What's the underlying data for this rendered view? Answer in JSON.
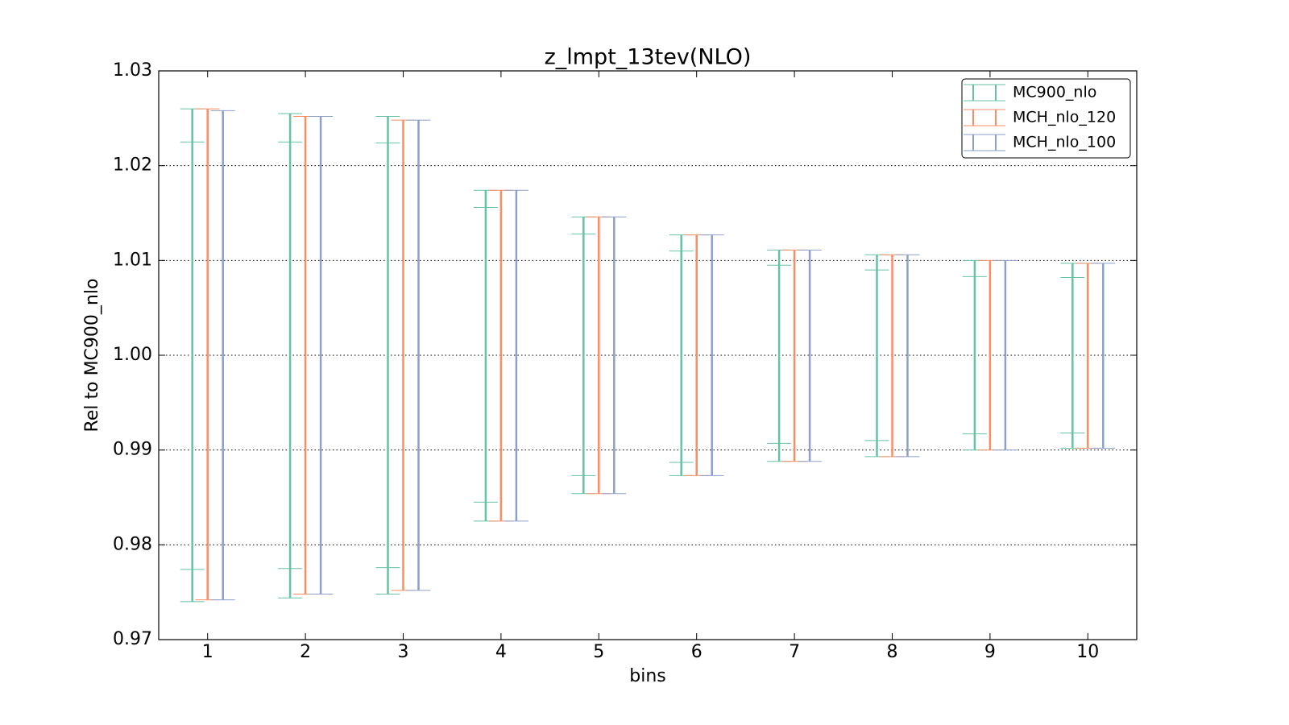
{
  "chart_data": {
    "type": "errorbar",
    "title": "z_lmpt_13tev(NLO)",
    "xlabel": "bins",
    "ylabel": "Rel to MC900_nlo",
    "x": [
      1,
      2,
      3,
      4,
      5,
      6,
      7,
      8,
      9,
      10
    ],
    "series": [
      {
        "name": "MC900_nlo",
        "color": "#66c2a5",
        "high": [
          1.026,
          1.0255,
          1.0252,
          1.0174,
          1.0146,
          1.0127,
          1.0111,
          1.0106,
          1.01,
          1.0097
        ],
        "low": [
          0.974,
          0.9744,
          0.9748,
          0.9825,
          0.9854,
          0.9873,
          0.9888,
          0.9893,
          0.99,
          0.9902
        ],
        "inner_high": [
          1.0225,
          1.0225,
          1.0224,
          1.0156,
          1.0128,
          1.011,
          1.0095,
          1.009,
          1.0083,
          1.0082
        ],
        "inner_low": [
          0.9774,
          0.9775,
          0.9776,
          0.9845,
          0.9873,
          0.9887,
          0.9907,
          0.991,
          0.9917,
          0.9918
        ]
      },
      {
        "name": "MCH_nlo_120",
        "color": "#fc8d62",
        "high": [
          1.026,
          1.0252,
          1.0248,
          1.0174,
          1.0146,
          1.0127,
          1.0111,
          1.0106,
          1.01,
          1.0097
        ],
        "low": [
          0.9742,
          0.9748,
          0.9752,
          0.9825,
          0.9854,
          0.9873,
          0.9888,
          0.9893,
          0.99,
          0.9902
        ]
      },
      {
        "name": "MCH_nlo_100",
        "color": "#8da0cb",
        "high": [
          1.0258,
          1.0252,
          1.0248,
          1.0174,
          1.0146,
          1.0127,
          1.0111,
          1.0106,
          1.01,
          1.0097
        ],
        "low": [
          0.9742,
          0.9748,
          0.9752,
          0.9825,
          0.9854,
          0.9873,
          0.9888,
          0.9893,
          0.99,
          0.9902
        ]
      }
    ],
    "xlim": [
      0.5,
      10.5
    ],
    "xticks": [
      1,
      2,
      3,
      4,
      5,
      6,
      7,
      8,
      9,
      10
    ],
    "ylim": [
      0.97,
      1.03
    ],
    "yticks": [
      0.97,
      0.98,
      0.99,
      {
        "value": 1,
        "label": "1.00"
      },
      1.01,
      1.02,
      1.03
    ],
    "grid": true,
    "legend": "upper right"
  }
}
